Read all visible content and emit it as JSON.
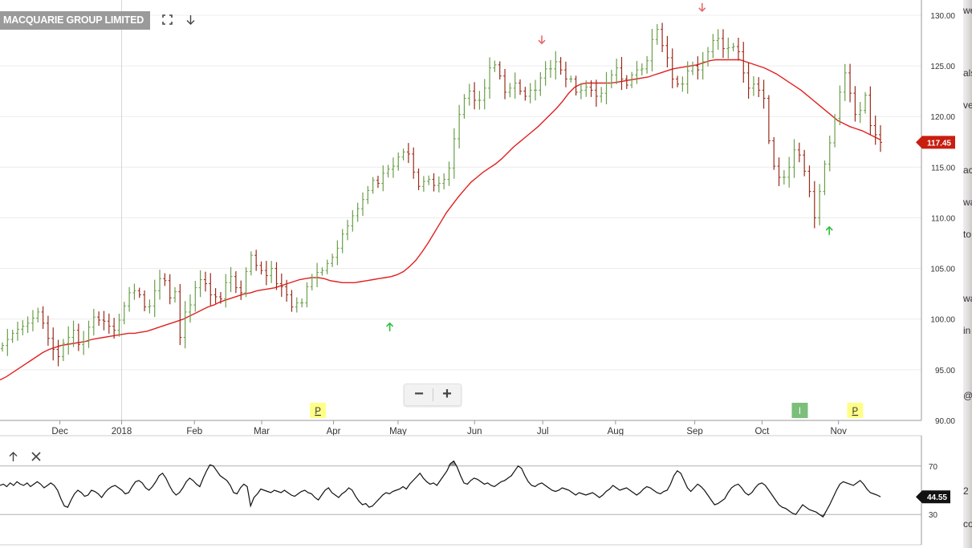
{
  "header": {
    "title": "MACQUARIE GROUP LIMITED",
    "expand_icon": "expand-icon",
    "download_icon": "arrow-down-icon"
  },
  "zoom": {
    "minus": "−",
    "plus": "+"
  },
  "indicator_panel": {
    "up_icon": "arrow-up-icon",
    "close_icon": "close-icon"
  },
  "right_strip": [
    "we",
    "als",
    "ve",
    "ac",
    "wa",
    "to",
    "wa",
    "in",
    "@i",
    "2",
    "co"
  ],
  "colors": {
    "up_bar": "#6a9e48",
    "down_bar": "#992a1a",
    "ma_line": "#e02020",
    "price_tag": "#c81e10",
    "rsi_line": "#111111",
    "signal_up": "#2ebd3a",
    "signal_down": "#e86a6a",
    "event_p": "#ffff88",
    "event_i": "#7bbf7a",
    "grid": "#ececec",
    "axis": "#999999"
  },
  "chart_data": [
    {
      "type": "ohlc",
      "x_tick_labels": [
        "Dec",
        "2018",
        "Feb",
        "Mar",
        "Apr",
        "May",
        "Jun",
        "Jul",
        "Aug",
        "Sep",
        "Oct",
        "Nov"
      ],
      "y_tick_labels": [
        "90.00",
        "95.00",
        "100.00",
        "105.00",
        "110.00",
        "115.00",
        "120.00",
        "125.00",
        "130.00"
      ],
      "ylim": [
        90,
        131.5
      ],
      "last_price_label": "117.45",
      "last_price": 117.45,
      "close_series": [
        97.4,
        98.0,
        98.6,
        99.0,
        99.3,
        99.6,
        100.1,
        100.7,
        99.6,
        98.1,
        97.0,
        96.3,
        97.6,
        98.2,
        98.9,
        97.5,
        97.8,
        99.2,
        100.2,
        99.9,
        99.8,
        99.3,
        98.9,
        99.9,
        101.3,
        102.6,
        102.8,
        102.4,
        101.2,
        101.3,
        102.8,
        104.0,
        103.8,
        102.1,
        102.7,
        98.2,
        100.7,
        101.4,
        103.1,
        103.9,
        103.5,
        102.4,
        102.2,
        102.0,
        103.6,
        104.2,
        103.1,
        102.6,
        104.7,
        106.3,
        105.3,
        104.8,
        104.3,
        105.0,
        103.5,
        103.2,
        102.4,
        101.2,
        101.6,
        101.6,
        103.2,
        104.1,
        104.6,
        104.8,
        105.5,
        106.1,
        107.0,
        108.4,
        109.2,
        110.2,
        110.9,
        111.8,
        112.7,
        113.7,
        113.4,
        114.4,
        114.8,
        115.1,
        116.0,
        116.5,
        116.3,
        114.5,
        113.1,
        113.6,
        113.8,
        113.2,
        113.4,
        113.8,
        114.9,
        117.8,
        120.2,
        121.8,
        122.5,
        121.6,
        121.6,
        122.8,
        124.8,
        125.1,
        124.0,
        122.4,
        122.8,
        123.3,
        122.5,
        122.0,
        122.6,
        122.6,
        123.8,
        124.7,
        124.7,
        125.4,
        124.6,
        123.7,
        123.7,
        122.4,
        122.6,
        122.9,
        122.6,
        122.0,
        122.3,
        123.3,
        124.1,
        124.8,
        123.7,
        123.1,
        124.1,
        124.6,
        124.7,
        125.5,
        127.6,
        128.6,
        127.0,
        125.8,
        123.7,
        123.2,
        123.2,
        124.5,
        125.0,
        124.6,
        125.4,
        126.4,
        127.5,
        127.7,
        126.7,
        126.8,
        126.9,
        126.4,
        124.3,
        122.8,
        123.2,
        122.6,
        121.8,
        117.6,
        115.1,
        114.0,
        114.0,
        115.0,
        116.7,
        116.2,
        114.6,
        112.6,
        110.0,
        112.6,
        115.3,
        117.4,
        119.8,
        122.4,
        124.3,
        122.3,
        120.2,
        120.6,
        122.1,
        119.1,
        118.2,
        117.45
      ],
      "ma_series": [
        94.0,
        94.3,
        94.7,
        95.1,
        95.5,
        95.9,
        96.3,
        96.7,
        97.0,
        97.2,
        97.4,
        97.5,
        97.6,
        97.7,
        97.8,
        98.0,
        98.1,
        98.2,
        98.3,
        98.4,
        98.5,
        98.6,
        98.6,
        98.7,
        98.8,
        99.0,
        99.2,
        99.4,
        99.6,
        99.8,
        100.0,
        100.3,
        100.6,
        100.9,
        101.2,
        101.4,
        101.7,
        101.9,
        102.1,
        102.3,
        102.5,
        102.6,
        102.8,
        102.9,
        103.0,
        103.1,
        103.3,
        103.5,
        103.7,
        103.9,
        104.0,
        104.1,
        104.1,
        104.0,
        103.8,
        103.7,
        103.6,
        103.6,
        103.6,
        103.7,
        103.8,
        103.9,
        104.0,
        104.1,
        104.2,
        104.4,
        104.7,
        105.2,
        105.8,
        106.6,
        107.5,
        108.5,
        109.5,
        110.5,
        111.3,
        112.1,
        112.8,
        113.5,
        114.0,
        114.5,
        114.9,
        115.3,
        115.8,
        116.4,
        117.0,
        117.5,
        118.0,
        118.5,
        119.0,
        119.6,
        120.2,
        120.8,
        121.5,
        122.3,
        122.9,
        123.2,
        123.3,
        123.3,
        123.3,
        123.3,
        123.3,
        123.4,
        123.5,
        123.6,
        123.7,
        123.8,
        123.9,
        124.1,
        124.3,
        124.5,
        124.7,
        124.8,
        124.9,
        125.0,
        125.1,
        125.3,
        125.5,
        125.6,
        125.6,
        125.6,
        125.6,
        125.6,
        125.4,
        125.2,
        125.0,
        124.8,
        124.5,
        124.2,
        123.8,
        123.4,
        123.0,
        122.6,
        122.1,
        121.6,
        121.1,
        120.6,
        120.1,
        119.6,
        119.3,
        119.0,
        118.8,
        118.6,
        118.3,
        118.0,
        117.7
      ],
      "annotations": [
        {
          "kind": "arrow-up",
          "x": 0.423,
          "price": 99.2
        },
        {
          "kind": "arrow-down",
          "x": 0.588,
          "price": 127.6
        },
        {
          "kind": "arrow-down",
          "x": 0.762,
          "price": 130.8
        },
        {
          "kind": "arrow-up",
          "x": 0.9,
          "price": 108.7
        }
      ],
      "events": [
        {
          "label": "P",
          "x": 0.345,
          "kind": "P"
        },
        {
          "label": "I",
          "x": 0.868,
          "kind": "I"
        },
        {
          "label": "P",
          "x": 0.928,
          "kind": "P"
        }
      ]
    },
    {
      "type": "line",
      "indicator": "oscillator",
      "y_tick_labels": [
        "70",
        "30"
      ],
      "ylim": [
        5,
        95
      ],
      "last_value_label": "44.55",
      "last_value": 44.55,
      "reference_lines": [
        70,
        30
      ],
      "values": [
        54,
        55,
        53,
        56,
        54,
        57,
        55,
        54,
        56,
        53,
        55,
        57,
        55,
        52,
        54,
        56,
        54,
        50,
        43,
        37,
        36,
        42,
        47,
        50,
        48,
        45,
        46,
        50,
        49,
        47,
        44,
        48,
        51,
        53,
        54,
        52,
        50,
        47,
        48,
        53,
        57,
        58,
        56,
        52,
        50,
        53,
        57,
        62,
        64,
        60,
        54,
        49,
        46,
        48,
        52,
        57,
        60,
        58,
        55,
        53,
        60,
        66,
        71,
        70,
        66,
        62,
        60,
        58,
        54,
        48,
        47,
        52,
        55,
        53,
        37,
        44,
        47,
        51,
        50,
        49,
        48,
        50,
        49,
        48,
        50,
        48,
        46,
        45,
        47,
        49,
        50,
        48,
        47,
        44,
        42,
        46,
        50,
        52,
        48,
        46,
        44,
        47,
        49,
        52,
        50,
        45,
        41,
        38,
        39,
        36,
        37,
        40,
        43,
        46,
        48,
        47,
        49,
        50,
        51,
        53,
        51,
        55,
        58,
        61,
        64,
        60,
        57,
        55,
        56,
        54,
        58,
        62,
        66,
        72,
        74,
        69,
        62,
        56,
        55,
        58,
        60,
        59,
        57,
        55,
        56,
        54,
        53,
        55,
        57,
        58,
        60,
        62,
        66,
        70,
        68,
        62,
        57,
        54,
        53,
        55,
        56,
        54,
        52,
        50,
        49,
        50,
        52,
        51,
        50,
        48,
        46,
        48,
        47,
        46,
        47,
        48,
        46,
        44,
        46,
        49,
        51,
        54,
        52,
        50,
        51,
        52,
        50,
        48,
        46,
        48,
        51,
        53,
        52,
        50,
        48,
        47,
        49,
        50,
        55,
        62,
        66,
        64,
        58,
        52,
        49,
        52,
        55,
        53,
        50,
        46,
        42,
        38,
        39,
        41,
        43,
        48,
        52,
        54,
        55,
        52,
        48,
        46,
        48,
        52,
        55,
        56,
        54,
        50,
        46,
        42,
        38,
        36,
        35,
        33,
        31,
        30,
        34,
        38,
        36,
        34,
        33,
        32,
        30,
        28,
        33,
        38,
        44,
        50,
        55,
        57,
        56,
        55,
        54,
        56,
        58,
        55,
        51,
        48,
        47,
        46,
        44.55
      ]
    }
  ]
}
